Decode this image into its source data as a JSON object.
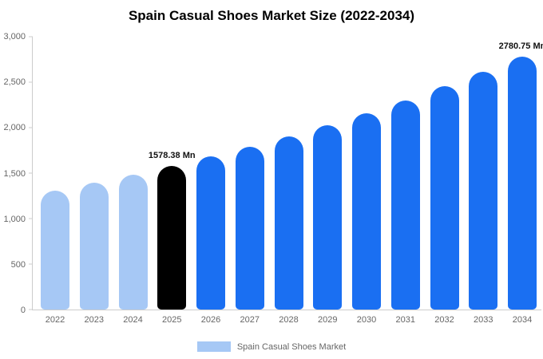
{
  "title": "Spain Casual Shoes Market Size (2022-2034)",
  "legend": {
    "label": "Spain Casual Shoes Market",
    "swatch_color": "#a6c8f5"
  },
  "colors": {
    "historical": "#a6c8f5",
    "base_year": "#000000",
    "forecast": "#1a6ff2",
    "axis_line": "#cccccc",
    "tick_text": "#666666"
  },
  "chart_data": {
    "type": "bar",
    "title": "Spain Casual Shoes Market Size (2022-2034)",
    "xlabel": "",
    "ylabel": "",
    "ylim": [
      0,
      3000
    ],
    "categories": [
      "2022",
      "2023",
      "2024",
      "2025",
      "2026",
      "2027",
      "2028",
      "2029",
      "2030",
      "2031",
      "2032",
      "2033",
      "2034"
    ],
    "values": [
      1306,
      1391,
      1482,
      1578.38,
      1681,
      1790,
      1906,
      2030,
      2162,
      2302,
      2452,
      2611,
      2780.75
    ],
    "unit": "Mn",
    "bar_colors": [
      "#a6c8f5",
      "#a6c8f5",
      "#a6c8f5",
      "#000000",
      "#1a6ff2",
      "#1a6ff2",
      "#1a6ff2",
      "#1a6ff2",
      "#1a6ff2",
      "#1a6ff2",
      "#1a6ff2",
      "#1a6ff2",
      "#1a6ff2"
    ],
    "yticks": [
      {
        "label": "0",
        "value": 0
      },
      {
        "label": "500",
        "value": 500
      },
      {
        "label": "1,000",
        "value": 1000
      },
      {
        "label": "1,500",
        "value": 1500
      },
      {
        "label": "2,000",
        "value": 2000
      },
      {
        "label": "2,500",
        "value": 2500
      },
      {
        "label": "3,000",
        "value": 3000
      }
    ],
    "annotations": [
      {
        "category": "2025",
        "text": "1578.38 Mn"
      },
      {
        "category": "2034",
        "text": "2780.75 Mn"
      }
    ],
    "legend_position": "bottom",
    "grid": false
  }
}
